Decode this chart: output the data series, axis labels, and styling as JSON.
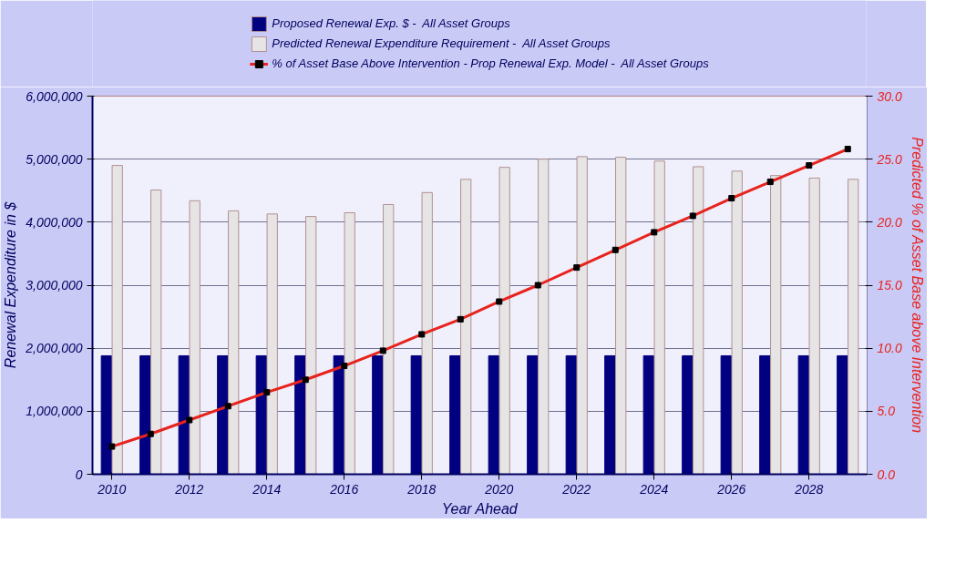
{
  "chart_data": {
    "type": "bar",
    "xlabel": "Year Ahead",
    "ylabel": "Renewal Expenditure in $",
    "y2label": "Predicted % of Asset Base above Intervention",
    "x": [
      2010,
      2011,
      2012,
      2013,
      2014,
      2015,
      2016,
      2017,
      2018,
      2019,
      2020,
      2021,
      2022,
      2023,
      2024,
      2025,
      2026,
      2027,
      2028,
      2029
    ],
    "series": [
      {
        "name": "Proposed Renewal Exp. $ -  All Asset Groups",
        "color": "#000080",
        "values": [
          1880000,
          1880000,
          1880000,
          1880000,
          1880000,
          1880000,
          1880000,
          1880000,
          1880000,
          1880000,
          1880000,
          1880000,
          1880000,
          1880000,
          1880000,
          1880000,
          1880000,
          1880000,
          1880000,
          1880000
        ]
      },
      {
        "name": "Predicted Renewal Expenditure Requirement -  All Asset Groups",
        "color": "#e6e4e4",
        "values": [
          4900000,
          4510000,
          4340000,
          4180000,
          4130000,
          4090000,
          4150000,
          4280000,
          4470000,
          4680000,
          4870000,
          5000000,
          5040000,
          5030000,
          4970000,
          4880000,
          4810000,
          4740000,
          4700000,
          4680000
        ]
      },
      {
        "name": "% of Asset Base Above Intervention - Prop Renewal Exp. Model -  All Asset Groups",
        "type": "line",
        "axis": "y2",
        "color": "#e8231e",
        "marker": "square",
        "values": [
          2.2,
          3.2,
          4.3,
          5.4,
          6.5,
          7.5,
          8.6,
          9.8,
          11.1,
          12.3,
          13.7,
          15.0,
          16.4,
          17.8,
          19.2,
          20.5,
          21.9,
          23.2,
          24.5,
          25.8
        ]
      }
    ],
    "xlim": [
      2009.5,
      2029.5
    ],
    "xticks": [
      2010,
      2012,
      2014,
      2016,
      2018,
      2020,
      2022,
      2024,
      2026,
      2028
    ],
    "ylim": [
      0,
      6000000
    ],
    "yticks": [
      {
        "value": 0,
        "label": "0"
      },
      {
        "value": 1000000,
        "label": "1,000,000"
      },
      {
        "value": 2000000,
        "label": "2,000,000"
      },
      {
        "value": 3000000,
        "label": "3,000,000"
      },
      {
        "value": 4000000,
        "label": "4,000,000"
      },
      {
        "value": 5000000,
        "label": "5,000,000"
      },
      {
        "value": 6000000,
        "label": "6,000,000"
      }
    ],
    "y2lim": [
      0,
      30
    ],
    "y2ticks": [
      {
        "value": 0,
        "label": "0.0"
      },
      {
        "value": 5,
        "label": "5.0"
      },
      {
        "value": 10,
        "label": "10.0"
      },
      {
        "value": 15,
        "label": "15.0"
      },
      {
        "value": 20,
        "label": "20.0"
      },
      {
        "value": 25,
        "label": "25.0"
      },
      {
        "value": 30,
        "label": "30.0"
      }
    ],
    "grid": "y",
    "legend": "top"
  }
}
